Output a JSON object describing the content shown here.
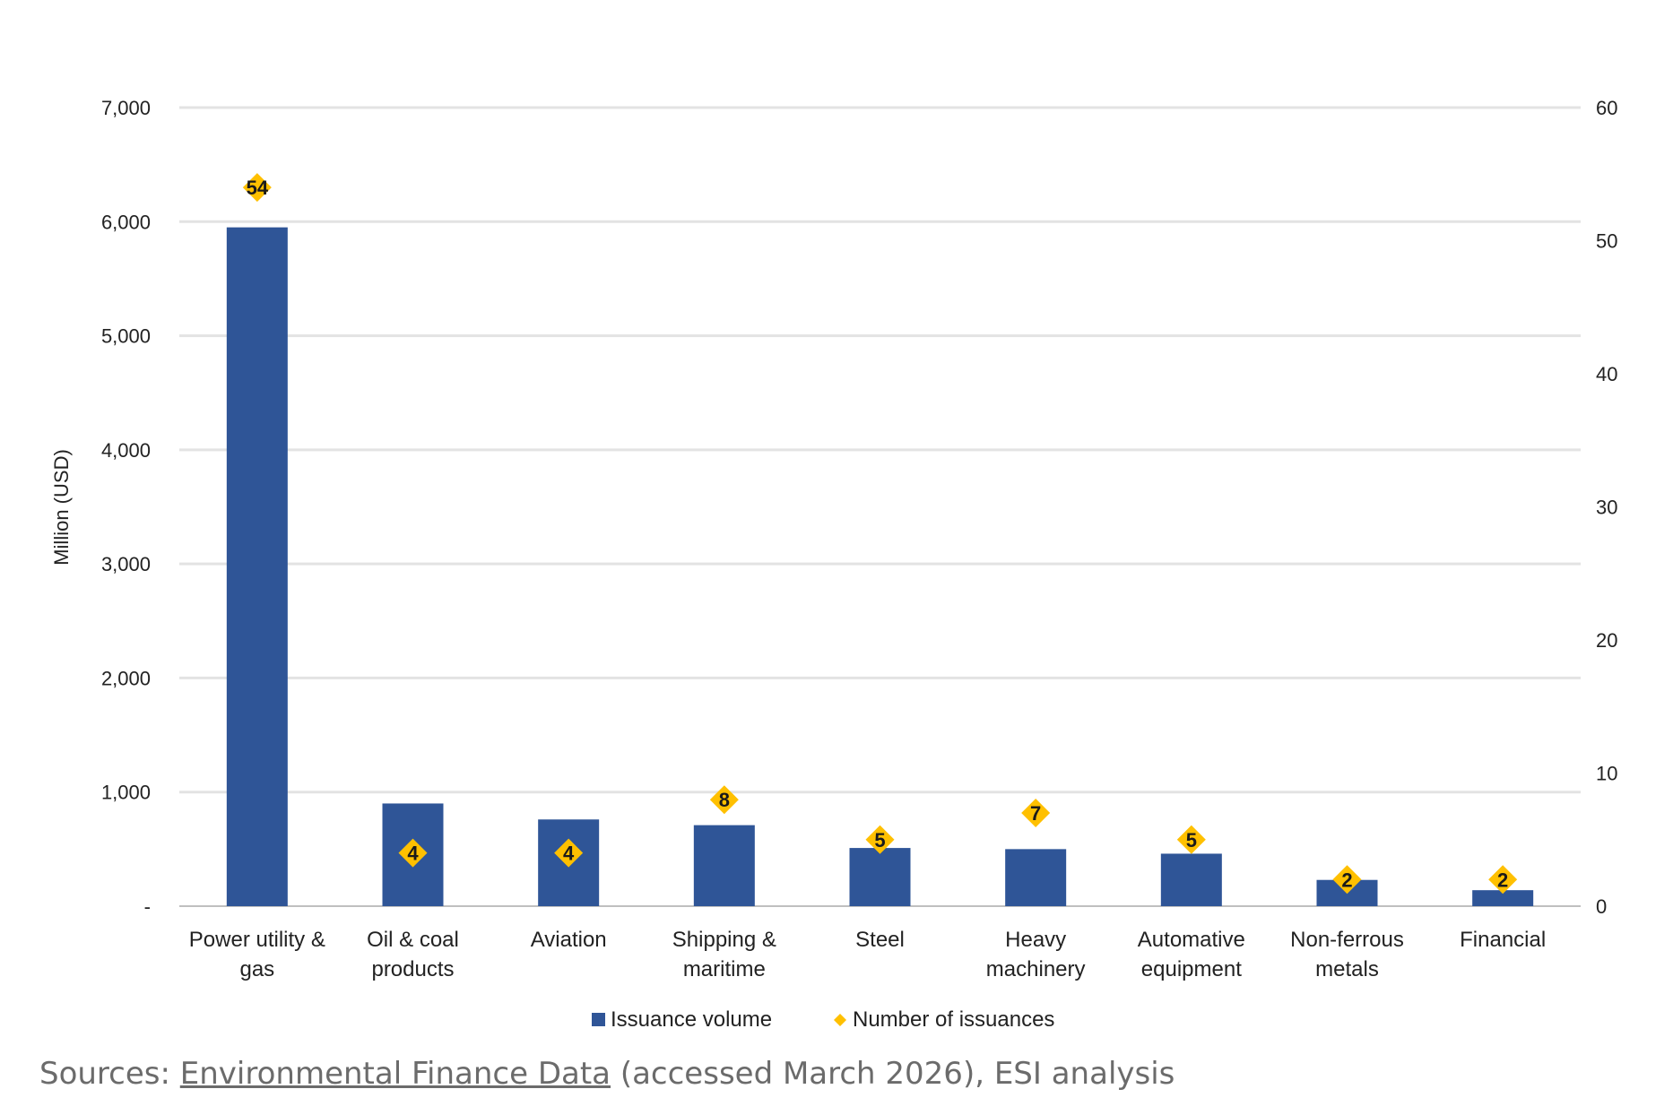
{
  "chart_data": {
    "type": "bar",
    "categories": [
      [
        "Power utility &",
        "gas"
      ],
      [
        "Oil & coal",
        "products"
      ],
      [
        "Aviation"
      ],
      [
        "Shipping &",
        "maritime"
      ],
      [
        "Steel"
      ],
      [
        "Heavy",
        "machinery"
      ],
      [
        "Automative",
        "equipment"
      ],
      [
        "Non-ferrous",
        "metals"
      ],
      [
        "Financial"
      ]
    ],
    "series": [
      {
        "name": "Issuance volume",
        "type": "bar",
        "axis": "left",
        "color": "#2f5597",
        "values": [
          5950,
          900,
          760,
          710,
          510,
          500,
          460,
          230,
          140
        ]
      },
      {
        "name": "Number of issuances",
        "type": "scatter",
        "axis": "right",
        "color": "#ffc000",
        "marker": "diamond",
        "values": [
          54,
          4,
          4,
          8,
          5,
          7,
          5,
          2,
          2
        ]
      }
    ],
    "ylabel": "Million (USD)",
    "ylim": [
      0,
      7000
    ],
    "y_ticks": [
      0,
      1000,
      2000,
      3000,
      4000,
      5000,
      6000,
      7000
    ],
    "y_tick_labels": [
      "-",
      "1,000",
      "2,000",
      "3,000",
      "4,000",
      "5,000",
      "6,000",
      "7,000"
    ],
    "y2lim": [
      0,
      60
    ],
    "y2_ticks": [
      0,
      10,
      20,
      30,
      40,
      50,
      60
    ],
    "y2_tick_labels": [
      "0",
      "10",
      "20",
      "30",
      "40",
      "50",
      "60"
    ],
    "grid": true,
    "legend": "bottom"
  },
  "source": {
    "prefix": "Sources: ",
    "link_text": "Environmental Finance Data",
    "suffix": " (accessed March 2026), ESI analysis"
  }
}
